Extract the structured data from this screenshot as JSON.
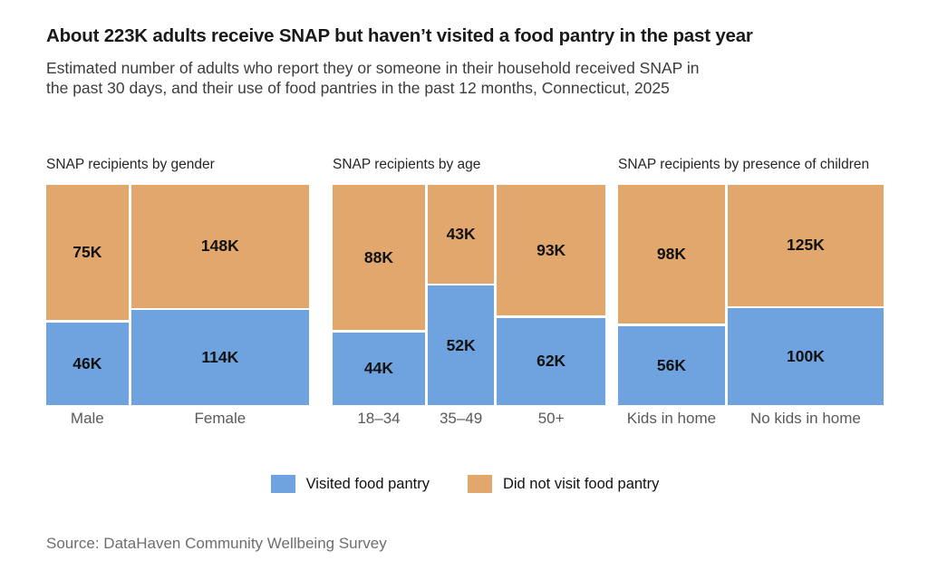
{
  "chart_data": {
    "type": "mosaic",
    "title": "About 223K adults receive SNAP but haven’t visited a food pantry in the past year",
    "subtitle_line1": "Estimated number of adults who report they or someone in their household received SNAP in",
    "subtitle_line2": "the past 30 days, and their use of food pantries in the past 12 months, Connecticut, 2025",
    "units": "thousands of adults",
    "layout": {
      "legend_position": "bottom-center",
      "grid": false,
      "column_width_proportional_to": "category total",
      "segment_height_proportional_to": "within-category share"
    },
    "legend": [
      {
        "key": "visited",
        "label": "Visited food pantry",
        "color": "#6FA3E0"
      },
      {
        "key": "not_visited",
        "label": "Did not visit food pantry",
        "color": "#E2A76D"
      }
    ],
    "panels": [
      {
        "title": "SNAP recipients by gender",
        "columns": [
          {
            "category": "Male",
            "visited": 46,
            "visited_label": "46K",
            "not_visited": 75,
            "not_visited_label": "75K"
          },
          {
            "category": "Female",
            "visited": 114,
            "visited_label": "114K",
            "not_visited": 148,
            "not_visited_label": "148K"
          }
        ]
      },
      {
        "title": "SNAP recipients by age",
        "columns": [
          {
            "category": "18–34",
            "visited": 44,
            "visited_label": "44K",
            "not_visited": 88,
            "not_visited_label": "88K"
          },
          {
            "category": "35–49",
            "visited": 52,
            "visited_label": "52K",
            "not_visited": 43,
            "not_visited_label": "43K"
          },
          {
            "category": "50+",
            "visited": 62,
            "visited_label": "62K",
            "not_visited": 93,
            "not_visited_label": "93K"
          }
        ]
      },
      {
        "title": "SNAP recipients by presence of children",
        "columns": [
          {
            "category": "Kids in home",
            "visited": 56,
            "visited_label": "56K",
            "not_visited": 98,
            "not_visited_label": "98K"
          },
          {
            "category": "No kids in home",
            "visited": 100,
            "visited_label": "100K",
            "not_visited": 125,
            "not_visited_label": "125K"
          }
        ]
      }
    ],
    "source": "Source: DataHaven Community Wellbeing Survey"
  }
}
